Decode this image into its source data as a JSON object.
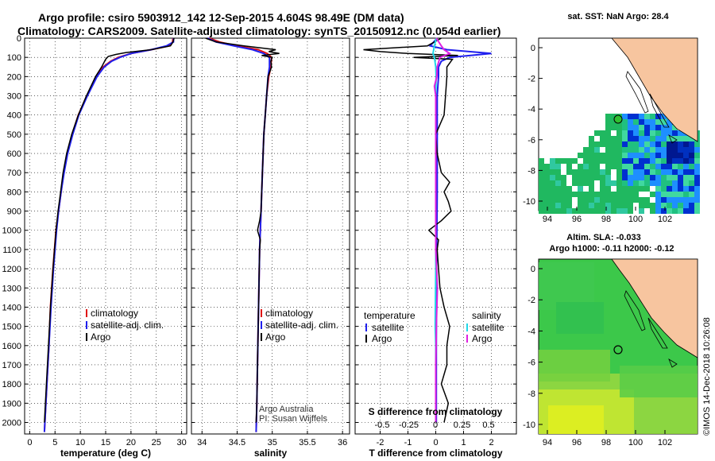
{
  "header": {
    "line1": "Argo profile: csiro 5903912_142 12-Sep-2015 4.604S 98.49E (DM data)",
    "line2": "Climatology: CARS2009. Satellite-adjusted climatology: synTS_20150912.nc (0.054d earlier)"
  },
  "colors": {
    "climatology": "#e01010",
    "satellite": "#2020ee",
    "argo": "#000000",
    "sal_satellite": "#20d8e8",
    "sal_argo": "#e020e0",
    "land": "#f7c59f",
    "ocean_blue": "#1e8fff",
    "ocean_green": "#22c060",
    "argo_marker": "#30c030"
  },
  "chart_data": [
    {
      "type": "line",
      "title": "",
      "xlabel": "temperature (deg C)",
      "ylabel": "",
      "xlim": [
        -1,
        31
      ],
      "ylim": [
        2060,
        0
      ],
      "xticks": [
        0,
        5,
        10,
        15,
        20,
        25,
        30
      ],
      "yticks": [
        0,
        100,
        200,
        300,
        400,
        500,
        600,
        700,
        800,
        900,
        1000,
        1100,
        1200,
        1300,
        1400,
        1500,
        1600,
        1700,
        1800,
        1900,
        2000
      ],
      "legend": [
        "climatology",
        "satellite-adj. clim.",
        "Argo"
      ],
      "series": [
        {
          "name": "climatology",
          "depth": [
            0,
            20,
            40,
            60,
            80,
            100,
            120,
            150,
            200,
            300,
            400,
            500,
            600,
            700,
            800,
            900,
            1000,
            1200,
            1400,
            1600,
            1800,
            2000,
            2050
          ],
          "values": [
            28.3,
            28.2,
            27.5,
            24,
            20,
            17.5,
            16,
            14.5,
            13.2,
            11.3,
            9.6,
            8.4,
            7.4,
            6.7,
            6.2,
            5.7,
            5.2,
            4.6,
            4.1,
            3.8,
            3.4,
            3.0,
            2.9
          ]
        },
        {
          "name": "satellite-adj. clim.",
          "depth": [
            0,
            20,
            40,
            60,
            80,
            100,
            120,
            150,
            200,
            300,
            400,
            500,
            600,
            700,
            800,
            900,
            1000,
            1200,
            1400,
            1600,
            1800,
            2000,
            2050
          ],
          "values": [
            28.4,
            28.4,
            27,
            24,
            20,
            17.8,
            16.2,
            14.7,
            13.3,
            11.4,
            9.7,
            8.5,
            7.5,
            6.8,
            6.2,
            5.7,
            5.3,
            4.7,
            4.2,
            3.8,
            3.4,
            3.0,
            2.9
          ]
        },
        {
          "name": "Argo",
          "depth": [
            0,
            20,
            40,
            60,
            75,
            85,
            95,
            110,
            150,
            200,
            300,
            400,
            500,
            600,
            700,
            800,
            900,
            1000,
            1200,
            1400,
            1600,
            1800,
            2000
          ],
          "values": [
            28.5,
            28.3,
            27.8,
            24,
            19,
            17,
            15.5,
            15,
            14.2,
            13,
            11.2,
            9.6,
            8.3,
            7.3,
            6.6,
            6.1,
            5.6,
            5.2,
            4.6,
            4.1,
            3.7,
            3.3,
            2.9
          ]
        }
      ]
    },
    {
      "type": "line",
      "title": "",
      "xlabel": "salinity",
      "ylabel": "",
      "xlim": [
        33.85,
        36.1
      ],
      "ylim": [
        2060,
        0
      ],
      "xticks": [
        34,
        34.5,
        35,
        35.5,
        36
      ],
      "legend": [
        "climatology",
        "satellite-adj. clim.",
        "Argo"
      ],
      "annotations": [
        "Argo Australia",
        "PI: Susan Wijffels"
      ],
      "series": [
        {
          "name": "climatology",
          "depth": [
            0,
            20,
            40,
            60,
            80,
            100,
            150,
            200,
            300,
            400,
            500,
            700,
            900,
            1100,
            1300,
            1500,
            1700,
            1900,
            2050
          ],
          "values": [
            34.1,
            34.25,
            34.5,
            34.8,
            34.93,
            34.99,
            34.98,
            34.95,
            34.92,
            34.9,
            34.88,
            34.86,
            34.84,
            34.82,
            34.81,
            34.8,
            34.79,
            34.78,
            34.77
          ]
        },
        {
          "name": "satellite-adj. clim.",
          "depth": [
            0,
            20,
            40,
            60,
            80,
            100,
            150,
            200,
            300,
            400,
            500,
            700,
            900,
            1100,
            1300,
            1500,
            1700,
            1900,
            2050
          ],
          "values": [
            34.08,
            34.2,
            34.45,
            34.72,
            34.88,
            34.96,
            34.96,
            34.94,
            34.92,
            34.9,
            34.88,
            34.86,
            34.84,
            34.82,
            34.81,
            34.8,
            34.79,
            34.78,
            34.77
          ]
        },
        {
          "name": "Argo",
          "depth": [
            0,
            20,
            40,
            60,
            70,
            80,
            90,
            100,
            120,
            150,
            200,
            300,
            400,
            500,
            600,
            700,
            800,
            900,
            950,
            1000,
            1050,
            1100,
            1300,
            1500,
            1700,
            1900,
            2000
          ],
          "values": [
            34.05,
            34.2,
            34.6,
            35.05,
            34.95,
            35.1,
            34.85,
            35.0,
            34.98,
            34.99,
            34.94,
            34.92,
            34.9,
            34.88,
            34.87,
            34.86,
            34.85,
            34.84,
            34.82,
            34.79,
            34.83,
            34.82,
            34.81,
            34.8,
            34.79,
            34.78,
            34.77
          ]
        }
      ]
    },
    {
      "type": "line",
      "title": "",
      "xlabel": "T difference from climatology",
      "xlabel2": "S difference from climatology",
      "xlim": [
        -2.9,
        2.9
      ],
      "ylim": [
        2060,
        0
      ],
      "xticks": [
        -2,
        -1,
        0,
        1,
        2
      ],
      "xticks2": [
        -0.5,
        -0.25,
        0,
        0.25,
        0.5
      ],
      "xtick2_labels": [
        "-0.5",
        "-0.25",
        "0",
        "0.25",
        "0.5"
      ],
      "legend_left_title": "temperature",
      "legend_right_title": "salinity",
      "legend": [
        "satellite",
        "Argo"
      ],
      "series": [
        {
          "name": "temperature satellite",
          "depth": [
            0,
            40,
            60,
            80,
            100,
            120,
            150,
            200,
            300,
            500,
            800,
            1200,
            1600,
            2000
          ],
          "values": [
            0.05,
            -0.2,
            0.4,
            2.0,
            0.5,
            0.2,
            0.1,
            0.1,
            0.05,
            0.05,
            0.05,
            0.03,
            0.02,
            0.02
          ]
        },
        {
          "name": "temperature Argo",
          "depth": [
            0,
            40,
            60,
            70,
            80,
            90,
            100,
            110,
            150,
            200,
            300,
            400,
            500,
            600,
            700,
            750,
            800,
            850,
            900,
            950,
            1000,
            1050,
            1100,
            1200,
            1300,
            1400,
            1500,
            1600,
            1700,
            1800,
            1900,
            2000
          ],
          "values": [
            0.2,
            -0.3,
            -2.6,
            -2.0,
            -1.0,
            0.8,
            -0.8,
            0.6,
            0.4,
            0.4,
            0.35,
            0.3,
            0,
            0.05,
            0.2,
            0.5,
            0.3,
            0.45,
            0.55,
            0.2,
            -0.25,
            0.1,
            0.05,
            0.1,
            0.15,
            0.3,
            0.5,
            0.4,
            0.4,
            0.2,
            0.45,
            0.3
          ]
        },
        {
          "name": "salinity satellite",
          "depth": [
            0,
            40,
            80,
            100,
            150,
            200,
            300,
            500,
            800,
            1200,
            1500,
            1600,
            2000
          ],
          "values": [
            0.02,
            -0.05,
            -0.1,
            -0.05,
            0.0,
            0.01,
            0.0,
            0.0,
            0.0,
            0.0,
            -0.02,
            0.0,
            0.0
          ]
        },
        {
          "name": "salinity Argo",
          "depth": [
            0,
            40,
            60,
            80,
            100,
            150,
            200,
            250,
            300,
            400,
            500,
            800,
            1100,
            1300,
            1500,
            1600,
            1700,
            2000
          ],
          "values": [
            0.02,
            0.2,
            0.3,
            0.5,
            0.15,
            0.05,
            0.04,
            -0.05,
            0.0,
            0.0,
            0.0,
            0.0,
            0.0,
            0.06,
            0.02,
            0.01,
            0.0,
            0.0
          ]
        }
      ]
    }
  ],
  "maps": {
    "top": {
      "title": "sat. SST: NaN Argo: 28.4",
      "yticks": [
        "0",
        "-2",
        "-4",
        "-6",
        "-8",
        "-10"
      ],
      "xticks": [
        "94",
        "96",
        "98",
        "100",
        "102"
      ]
    },
    "bottom": {
      "title1": "Altim. SLA: -0.033",
      "title2": "Argo h1000: -0.11 h2000: -0.12",
      "yticks": [
        "0",
        "-2",
        "-4",
        "-6",
        "-8",
        "-10"
      ],
      "xticks": [
        "94",
        "96",
        "98",
        "100",
        "102"
      ]
    }
  },
  "footer_vertical": "©IMOS 14-Dec-2018 10:26:08"
}
